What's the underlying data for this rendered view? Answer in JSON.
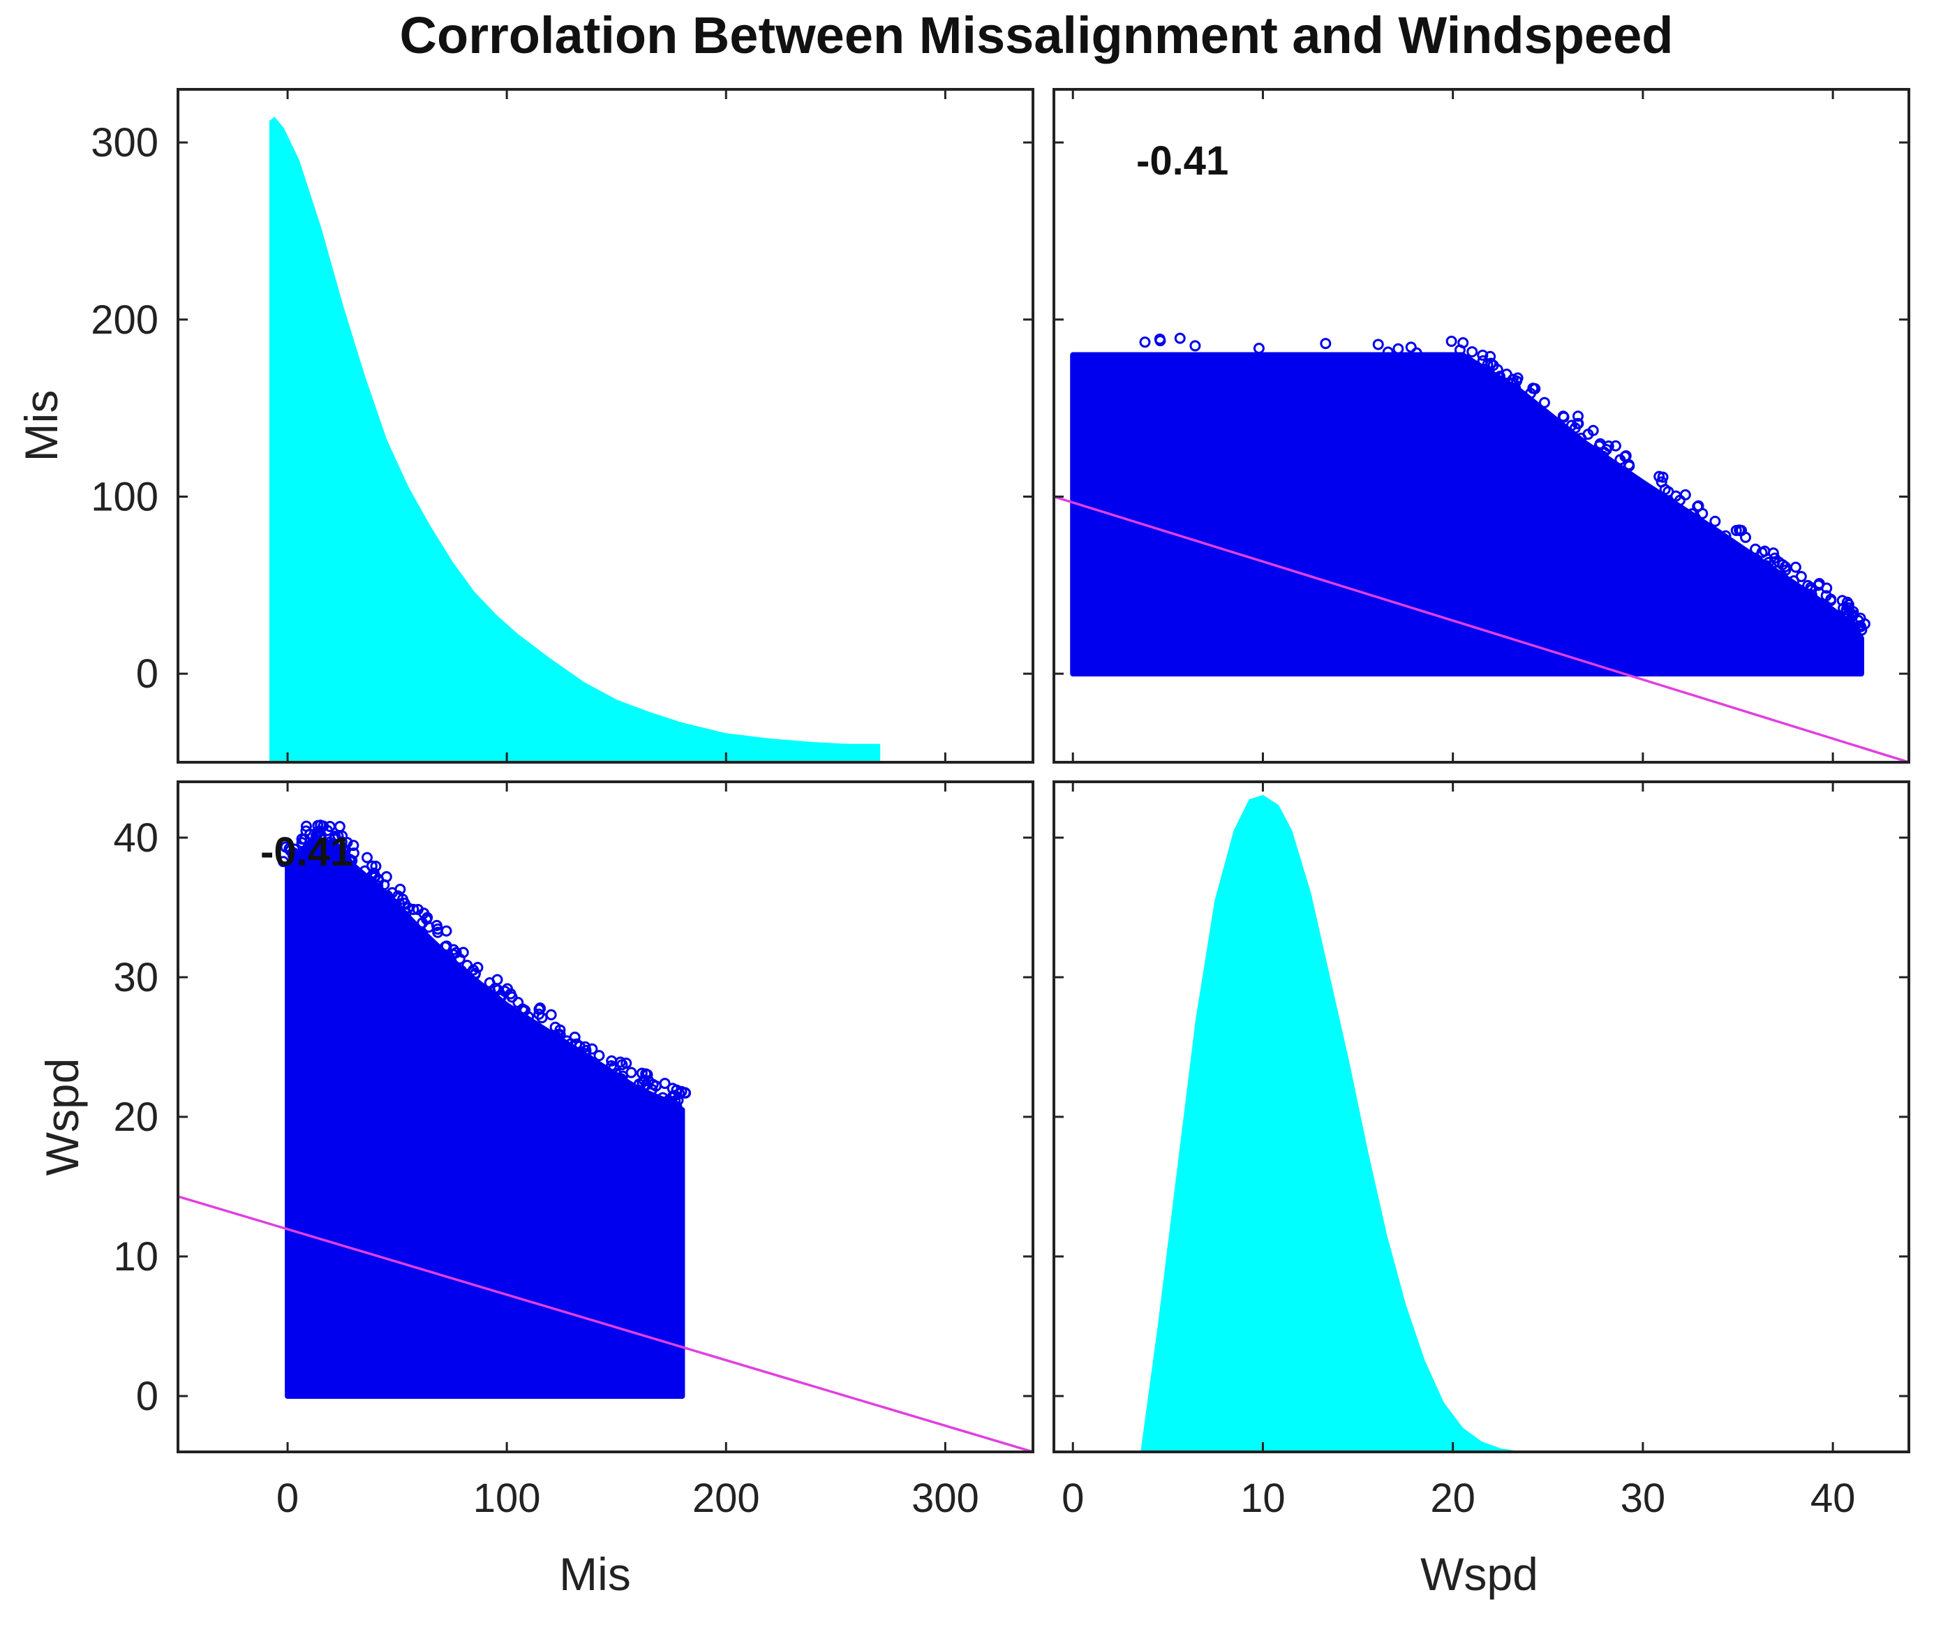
{
  "chart_data": {
    "type": "scatter",
    "title": "Corrolation Between Missalignment and Windspeed",
    "variables": [
      "Mis",
      "Wspd"
    ],
    "colors": {
      "histogram_fill": "#00FFFF",
      "scatter_marker": "#0000EE",
      "fit_line": "#E040E0",
      "axis": "#222222"
    },
    "panels": [
      {
        "id": "mis-mis",
        "kind": "density",
        "variable": "Mis",
        "xlim": [
          -50,
          340
        ],
        "display_ylim": [
          -50,
          330
        ],
        "density_x": [
          -8,
          -6,
          -2,
          5,
          15,
          25,
          35,
          45,
          55,
          65,
          75,
          85,
          95,
          105,
          120,
          135,
          150,
          165,
          180,
          200,
          220,
          240,
          255,
          270
        ],
        "density_y": [
          312,
          314,
          308,
          290,
          252,
          208,
          168,
          132,
          105,
          83,
          63,
          46,
          33,
          22,
          8,
          -5,
          -15,
          -22,
          -28,
          -34,
          -37,
          -39,
          -40,
          -40
        ],
        "baseline": -50,
        "correlation_label": ""
      },
      {
        "id": "wspd-mis",
        "kind": "scatter",
        "x_variable": "Wspd",
        "y_variable": "Mis",
        "xlim": [
          -1,
          44
        ],
        "ylim": [
          -50,
          330
        ],
        "point_region": {
          "x_min": 0,
          "x_max": 40,
          "y_min": 0,
          "y_max": 180,
          "upper_edge": [
            [
              0,
              180
            ],
            [
              20.5,
              180
            ],
            [
              23.5,
              160
            ],
            [
              27,
              130
            ],
            [
              30,
              108
            ],
            [
              34,
              80
            ],
            [
              37,
              58
            ],
            [
              39.5,
              40
            ],
            [
              41,
              28
            ],
            [
              41.5,
              20
            ],
            [
              41.5,
              0
            ]
          ]
        },
        "fit_line": [
          [
            -1,
            100
          ],
          [
            44,
            -50
          ]
        ],
        "correlation_label": "-0.41"
      },
      {
        "id": "mis-wspd",
        "kind": "scatter",
        "x_variable": "Mis",
        "y_variable": "Wspd",
        "xlim": [
          -50,
          340
        ],
        "ylim": [
          -4,
          44
        ],
        "point_region": {
          "x_min": 0,
          "x_max": 180,
          "y_min": 0,
          "y_max": 41,
          "upper_edge": [
            [
              0,
              38
            ],
            [
              12,
              40
            ],
            [
              22,
              39.5
            ],
            [
              30,
              38
            ],
            [
              45,
              36
            ],
            [
              60,
              33.5
            ],
            [
              80,
              30.5
            ],
            [
              100,
              28
            ],
            [
              120,
              26
            ],
            [
              140,
              24
            ],
            [
              160,
              22
            ],
            [
              175,
              21
            ],
            [
              180,
              20.5
            ],
            [
              180,
              0
            ]
          ]
        },
        "fit_line": [
          [
            -50,
            14.3
          ],
          [
            340,
            -4
          ]
        ],
        "correlation_label": "-0.41"
      },
      {
        "id": "wspd-wspd",
        "kind": "density",
        "variable": "Wspd",
        "xlim": [
          -1,
          44
        ],
        "display_ylim": [
          -4,
          44
        ],
        "density_x": [
          3.6,
          4.5,
          5.5,
          6.5,
          7.5,
          8.5,
          9.3,
          10,
          10.8,
          11.5,
          12.5,
          13.5,
          14.5,
          15.5,
          16.5,
          17.5,
          18.5,
          19.5,
          20.5,
          21.5,
          22.5,
          23.5
        ],
        "density_y": [
          -4,
          5,
          16,
          27,
          35.5,
          40.5,
          42.7,
          43,
          42.3,
          40.5,
          36,
          30,
          24,
          17.5,
          11.5,
          6.5,
          2.5,
          -0.5,
          -2.3,
          -3.3,
          -3.8,
          -4
        ],
        "baseline": -4,
        "correlation_label": ""
      }
    ],
    "row_labels": [
      "Mis",
      "Wspd"
    ],
    "column_labels": [
      "Mis",
      "Wspd"
    ],
    "y_ticks": {
      "Mis": [
        0,
        100,
        200,
        300
      ],
      "Wspd": [
        0,
        10,
        20,
        30,
        40
      ]
    },
    "x_ticks": {
      "Mis": [
        0,
        100,
        200,
        300
      ],
      "Wspd": [
        0,
        10,
        20,
        30,
        40
      ]
    }
  }
}
